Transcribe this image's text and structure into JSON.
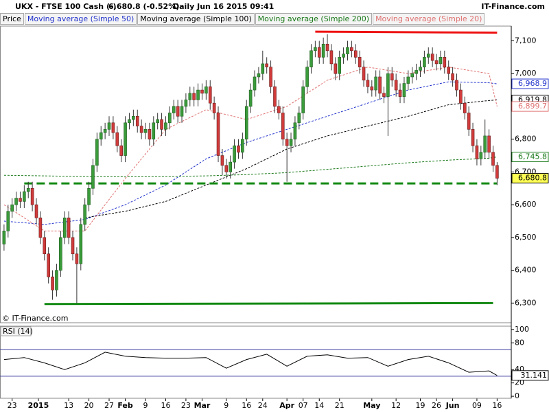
{
  "header": {
    "symbol": "UKX - FTSE 100 Cash (-)",
    "quote": "6,680.8 (-0.52%)",
    "period": "Daily  Jun 16 2015 09:41",
    "brand": "IT-Finance.com"
  },
  "chart_data": [
    {
      "type": "candlestick",
      "name": "Price",
      "watermark": "© IT-Finance.com",
      "up_color": "#3a9a3a",
      "down_color": "#d03b3b",
      "open": [
        6480,
        6520,
        6580,
        6600,
        6620,
        6610,
        6640,
        6650,
        6600,
        6560,
        6500,
        6450,
        6380,
        6340,
        6400,
        6500,
        6560,
        6500,
        6450,
        6420,
        6540,
        6600,
        6650,
        6720,
        6800,
        6820,
        6830,
        6850,
        6820,
        6780,
        6750,
        6850,
        6860,
        6870,
        6840,
        6820,
        6830,
        6800,
        6850,
        6860,
        6830,
        6850,
        6880,
        6900,
        6870,
        6900,
        6920,
        6940,
        6920,
        6950,
        6940,
        6960,
        6910,
        6880,
        6750,
        6720,
        6700,
        6730,
        6780,
        6760,
        6800,
        6900,
        6950,
        6990,
        7000,
        7030,
        7020,
        6960,
        6900,
        6880,
        6800,
        6780,
        6800,
        6850,
        6880,
        6960,
        7020,
        7070,
        7080,
        7050,
        7090,
        7070,
        7030,
        7000,
        7050,
        7060,
        7080,
        7070,
        7050,
        7020,
        6980,
        6960,
        6950,
        6990,
        6940,
        6930,
        7000,
        6980,
        6950,
        6930,
        6970,
        6990,
        7000,
        7010,
        7020,
        7050,
        7060,
        7040,
        7030,
        7050,
        7020,
        7000,
        6980,
        6950,
        6910,
        6880,
        6830,
        6780,
        6740,
        6760,
        6810,
        6760,
        6720
      ],
      "high": [
        6540,
        6600,
        6620,
        6640,
        6640,
        6660,
        6670,
        6670,
        6620,
        6580,
        6520,
        6470,
        6400,
        6420,
        6520,
        6580,
        6580,
        6520,
        6470,
        6560,
        6620,
        6670,
        6740,
        6820,
        6840,
        6850,
        6870,
        6870,
        6840,
        6800,
        6870,
        6880,
        6890,
        6890,
        6860,
        6850,
        6850,
        6870,
        6880,
        6880,
        6870,
        6900,
        6920,
        6920,
        6920,
        6940,
        6960,
        6960,
        6970,
        6970,
        6980,
        6980,
        6930,
        6900,
        6770,
        6740,
        6750,
        6800,
        6800,
        6820,
        6920,
        6970,
        7010,
        7020,
        7070,
        7050,
        7040,
        6980,
        6920,
        6900,
        6820,
        6820,
        6870,
        6900,
        6980,
        7040,
        7090,
        7100,
        7100,
        7110,
        7120,
        7090,
        7050,
        7070,
        7080,
        7100,
        7100,
        7090,
        7070,
        7040,
        7000,
        6980,
        7010,
        7010,
        6960,
        7020,
        7020,
        7000,
        6970,
        6990,
        7010,
        7020,
        7030,
        7040,
        7070,
        7080,
        7080,
        7060,
        7070,
        7070,
        7040,
        7020,
        7000,
        6970,
        6930,
        6900,
        6850,
        6800,
        6780,
        6860,
        6830,
        6780,
        6730
      ],
      "low": [
        6460,
        6500,
        6560,
        6580,
        6590,
        6590,
        6620,
        6580,
        6540,
        6480,
        6430,
        6360,
        6310,
        6320,
        6380,
        6480,
        6480,
        6430,
        6300,
        6400,
        6520,
        6580,
        6630,
        6700,
        6780,
        6800,
        6810,
        6800,
        6760,
        6730,
        6730,
        6830,
        6840,
        6820,
        6800,
        6800,
        6780,
        6780,
        6830,
        6810,
        6810,
        6830,
        6860,
        6850,
        6850,
        6880,
        6900,
        6900,
        6900,
        6920,
        6920,
        6890,
        6860,
        6730,
        6690,
        6680,
        6680,
        6710,
        6740,
        6740,
        6780,
        6880,
        6930,
        6970,
        6980,
        7000,
        6940,
        6880,
        6860,
        6780,
        6670,
        6760,
        6780,
        6830,
        6860,
        6940,
        7000,
        7050,
        7030,
        7030,
        7050,
        7010,
        6980,
        6980,
        7030,
        7040,
        7050,
        7030,
        7000,
        6960,
        6940,
        6930,
        6930,
        6920,
        6910,
        6810,
        6960,
        6930,
        6910,
        6910,
        6950,
        6970,
        6980,
        6990,
        7000,
        7030,
        7020,
        7010,
        7010,
        7000,
        6980,
        6960,
        6930,
        6890,
        6860,
        6810,
        6760,
        6720,
        6720,
        6740,
        6740,
        6700,
        6660
      ],
      "close": [
        6520,
        6580,
        6600,
        6620,
        6610,
        6640,
        6650,
        6600,
        6560,
        6500,
        6450,
        6380,
        6340,
        6400,
        6500,
        6560,
        6500,
        6450,
        6420,
        6540,
        6600,
        6650,
        6720,
        6800,
        6820,
        6830,
        6850,
        6820,
        6780,
        6750,
        6850,
        6860,
        6870,
        6840,
        6820,
        6830,
        6800,
        6850,
        6860,
        6830,
        6850,
        6880,
        6900,
        6870,
        6900,
        6920,
        6940,
        6920,
        6950,
        6940,
        6960,
        6910,
        6880,
        6750,
        6720,
        6700,
        6730,
        6780,
        6760,
        6800,
        6900,
        6950,
        6990,
        7000,
        7030,
        7020,
        6960,
        6900,
        6880,
        6800,
        6780,
        6800,
        6850,
        6880,
        6960,
        7020,
        7070,
        7080,
        7050,
        7090,
        7070,
        7030,
        7000,
        7050,
        7060,
        7080,
        7070,
        7050,
        7020,
        6980,
        6960,
        6950,
        6990,
        6940,
        6930,
        7000,
        6980,
        6950,
        6930,
        6970,
        6990,
        7000,
        7010,
        7020,
        7050,
        7060,
        7040,
        7030,
        7050,
        7020,
        7000,
        6980,
        6950,
        6910,
        6880,
        6830,
        6780,
        6740,
        6760,
        6810,
        6760,
        6720,
        6680.8
      ],
      "close_label": "6,680.8",
      "close_box": "#ffff55",
      "series": [
        {
          "name": "Moving average (Simple 50)",
          "color": "#2233cc",
          "x": [
            0,
            10,
            20,
            30,
            40,
            50,
            60,
            70,
            80,
            90,
            100,
            110,
            120,
            122
          ],
          "values": [
            6550,
            6540,
            6555,
            6600,
            6660,
            6740,
            6790,
            6830,
            6870,
            6910,
            6950,
            6975,
            6972,
            6968.9
          ],
          "last_label": "6,968.9"
        },
        {
          "name": "Moving average (Simple 100)",
          "color": "#000000",
          "x": [
            20,
            30,
            40,
            50,
            60,
            70,
            80,
            90,
            100,
            110,
            120,
            122
          ],
          "values": [
            6560,
            6580,
            6610,
            6660,
            6710,
            6770,
            6810,
            6840,
            6870,
            6905,
            6918,
            6919.8
          ],
          "last_label": "6,919.8"
        },
        {
          "name": "Moving average (Simple 200)",
          "color": "#1a7a1a",
          "x": [
            0,
            10,
            20,
            30,
            40,
            50,
            60,
            70,
            80,
            90,
            100,
            110,
            120,
            122
          ],
          "values": [
            6690,
            6688,
            6686,
            6685,
            6686,
            6688,
            6692,
            6698,
            6708,
            6718,
            6728,
            6736,
            6742,
            6745.8
          ],
          "last_label": "6,745.8"
        },
        {
          "name": "Moving average (Simple 20)",
          "color": "#e07070",
          "x": [
            0,
            10,
            20,
            30,
            40,
            50,
            60,
            70,
            80,
            90,
            100,
            110,
            120,
            122
          ],
          "values": [
            6600,
            6520,
            6520,
            6680,
            6830,
            6890,
            6860,
            6900,
            6980,
            7020,
            7000,
            7020,
            7000,
            6899.7
          ],
          "last_label": "6,899.7"
        }
      ],
      "trendlines": [
        {
          "color": "#ee1111",
          "x": [
            77,
            122
          ],
          "values": [
            7128,
            7125
          ],
          "dashed": false
        },
        {
          "color": "#118811",
          "x": [
            5,
            122
          ],
          "values": [
            6665,
            6665
          ],
          "dashed": true
        },
        {
          "color": "#118811",
          "x": [
            10,
            121
          ],
          "values": [
            6297,
            6300
          ],
          "dashed": false
        }
      ],
      "xlim": [
        -1,
        125.5
      ],
      "ylim": [
        6240,
        7145
      ],
      "yticks": [
        {
          "value": 6300,
          "label": "6,300"
        },
        {
          "value": 6400,
          "label": "6,400"
        },
        {
          "value": 6500,
          "label": "6,500"
        },
        {
          "value": 6600,
          "label": "6,600"
        },
        {
          "value": 6700,
          "label": "6,700"
        },
        {
          "value": 6800,
          "label": "6,800"
        },
        {
          "value": 6900,
          "label": "6,900"
        },
        {
          "value": 7000,
          "label": "7,000"
        },
        {
          "value": 7100,
          "label": "7,100"
        }
      ],
      "xticks": [
        {
          "value": 2,
          "label": "23"
        },
        {
          "value": 8.5,
          "label": "2015",
          "bold": true
        },
        {
          "value": 16,
          "label": "13"
        },
        {
          "value": 21,
          "label": "20"
        },
        {
          "value": 26,
          "label": "27"
        },
        {
          "value": 30,
          "label": "Feb",
          "bold": true
        },
        {
          "value": 35,
          "label": "9"
        },
        {
          "value": 40,
          "label": "16"
        },
        {
          "value": 45,
          "label": "23"
        },
        {
          "value": 49,
          "label": "Mar",
          "bold": true
        },
        {
          "value": 55,
          "label": "9"
        },
        {
          "value": 60,
          "label": "16"
        },
        {
          "value": 64,
          "label": "24"
        },
        {
          "value": 70,
          "label": "Apr",
          "bold": true
        },
        {
          "value": 74,
          "label": "07"
        },
        {
          "value": 78,
          "label": "14"
        },
        {
          "value": 83,
          "label": "21"
        },
        {
          "value": 91,
          "label": "May",
          "bold": true
        },
        {
          "value": 97,
          "label": "12"
        },
        {
          "value": 103,
          "label": "19"
        },
        {
          "value": 107,
          "label": "26"
        },
        {
          "value": 111,
          "label": "Jun",
          "bold": true
        },
        {
          "value": 117,
          "label": "09"
        },
        {
          "value": 122,
          "label": "16"
        }
      ]
    },
    {
      "type": "line",
      "title": "RSI (14)",
      "color": "#000000",
      "level_color": "#4040a0",
      "x": [
        0,
        5,
        10,
        15,
        20,
        25,
        30,
        35,
        40,
        45,
        50,
        55,
        60,
        65,
        70,
        75,
        80,
        85,
        90,
        95,
        100,
        105,
        110,
        115,
        120,
        122
      ],
      "values": [
        55,
        58,
        50,
        40,
        50,
        66,
        60,
        58,
        57,
        57,
        58,
        42,
        55,
        63,
        45,
        60,
        62,
        57,
        58,
        45,
        55,
        60,
        50,
        36,
        38,
        31.141
      ],
      "last_label": "31.141",
      "levels": [
        70,
        30
      ],
      "xlim": [
        -1,
        125.5
      ],
      "ylim": [
        -3,
        105
      ],
      "yticks": [
        0,
        20,
        40,
        80,
        100
      ]
    }
  ]
}
